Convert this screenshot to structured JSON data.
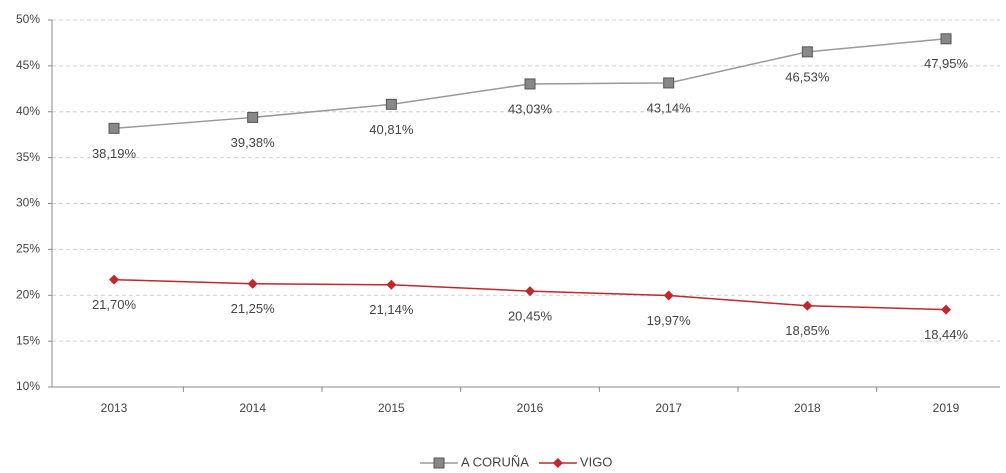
{
  "chart_data": {
    "type": "line",
    "categories": [
      "2013",
      "2014",
      "2015",
      "2016",
      "2017",
      "2018",
      "2019"
    ],
    "series": [
      {
        "name": "A CORUÑA",
        "color": "#999999",
        "marker": "square",
        "marker_color": "#888888",
        "values": [
          38.19,
          39.38,
          40.81,
          43.03,
          43.14,
          46.53,
          47.95
        ],
        "value_labels": [
          "38,19%",
          "39,38%",
          "40,81%",
          "43,03%",
          "43,14%",
          "46,53%",
          "47,95%"
        ]
      },
      {
        "name": "VIGO",
        "color": "#c0282d",
        "marker": "diamond",
        "marker_color": "#c0282d",
        "values": [
          21.7,
          21.25,
          21.14,
          20.45,
          19.97,
          18.85,
          18.44
        ],
        "value_labels": [
          "21,70%",
          "21,25%",
          "21,14%",
          "20,45%",
          "19,97%",
          "18,85%",
          "18,44%"
        ]
      }
    ],
    "ylim": [
      10,
      50
    ],
    "yticks": [
      {
        "value": 10,
        "label": "10%"
      },
      {
        "value": 15,
        "label": "15%"
      },
      {
        "value": 20,
        "label": "20%"
      },
      {
        "value": 25,
        "label": "25%"
      },
      {
        "value": 30,
        "label": "30%"
      },
      {
        "value": 35,
        "label": "35%"
      },
      {
        "value": 40,
        "label": "40%"
      },
      {
        "value": 45,
        "label": "45%"
      },
      {
        "value": 50,
        "label": "50%"
      }
    ],
    "grid": true,
    "legend": "bottom"
  }
}
